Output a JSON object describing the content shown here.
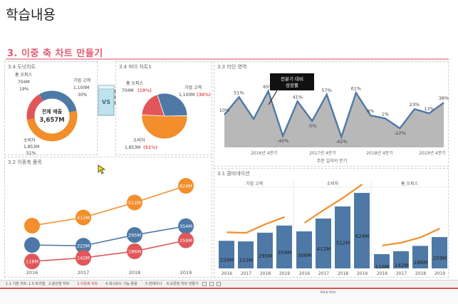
{
  "page_title": "학습내용",
  "section_title": "3. 이중 축 차트 만들기",
  "donut": {
    "title": "3.4 도넛차트",
    "center_label": "전체 매출",
    "center_value": "3,657M",
    "labels": [
      {
        "name": "홈 오피스",
        "value": "704M",
        "pct": "19%"
      },
      {
        "name": "기업 고객",
        "value": "1,100M",
        "pct": "30%"
      },
      {
        "name": "소비자",
        "value": "1,853M",
        "pct": "51%"
      }
    ],
    "colors": [
      "#e15759",
      "#4e79a7",
      "#f28e2b"
    ]
  },
  "vs": {
    "label": "VS"
  },
  "pie": {
    "title": "3.4 파이 차트1",
    "labels": [
      {
        "name": "홈 오피스",
        "value": "704M",
        "pct": "(19%)"
      },
      {
        "name": "기업 고객",
        "value": "1,100M",
        "pct": "(30%)"
      },
      {
        "name": "소비자",
        "value": "1,853M",
        "pct": "(51%)"
      }
    ]
  },
  "line": {
    "title": "3.3 라인 영역",
    "tooltip_line1": "전분기 대비",
    "tooltip_line2": "성장률",
    "x_ticks": [
      "2016년 4분기",
      "2017년 4분기",
      "2018년 4분기",
      "2019년 4분기"
    ],
    "x_axis_title": "주문 일자의 분기",
    "chart_data": {
      "type": "area",
      "values": [
        10,
        51,
        0,
        65,
        -40,
        41,
        -5,
        57,
        -42,
        61,
        8,
        1,
        -22,
        23,
        13,
        38
      ],
      "labels": [
        "10%",
        "51%",
        "",
        "65%",
        "-40%",
        "41%",
        "-5%",
        "57%",
        "-42%",
        "61%",
        "8%",
        "1%",
        "-22%",
        "23%",
        "13%",
        "38%"
      ]
    }
  },
  "dual": {
    "title": "3.2 이중축 품목",
    "years": [
      "2016",
      "2017",
      "2018",
      "2019"
    ],
    "series": [
      {
        "color": "#f28e2b",
        "values": [
          null,
          412,
          512,
          624
        ],
        "labels": [
          "",
          "412M",
          "512M",
          "624M"
        ]
      },
      {
        "color": "#4e79a7",
        "values": [
          228,
          223,
          295,
          354
        ],
        "labels": [
          "",
          "223M",
          "295M",
          "354M"
        ]
      },
      {
        "color": "#e15759",
        "values": [
          118,
          142,
          186,
          259
        ],
        "labels": [
          "118M",
          "142M",
          "186M",
          "259M"
        ]
      }
    ]
  },
  "combo": {
    "title": "3.1 콤비네이션",
    "groups": [
      {
        "name": "기업 고객",
        "values": [
          228,
          223,
          295,
          354
        ],
        "labels": [
          "228M",
          "223M",
          "295M",
          "354M"
        ]
      },
      {
        "name": "소비자",
        "values": [
          306,
          412,
          512,
          624
        ],
        "labels": [
          "306M",
          "412M",
          "512M",
          "624M"
        ]
      },
      {
        "name": "홈 오피스",
        "values": [
          118,
          142,
          186,
          259
        ],
        "labels": [
          "118M",
          "142M",
          "186M",
          "259M"
        ]
      }
    ],
    "years": [
      "2016",
      "2017",
      "2018",
      "2019"
    ],
    "bar_color": "#4e79a7",
    "line_color": "#f28e2b"
  },
  "taskbar": {
    "tabs": [
      "1.1 기본 차트",
      "1.5 트리맵",
      "2.분산형 차트",
      "3.이중축 차트",
      "4.대시보드 기능 활용",
      "5.컨테이너",
      "6.오픈된 차트 만들기"
    ],
    "active_index": 3,
    "user": "Rick Kim"
  }
}
